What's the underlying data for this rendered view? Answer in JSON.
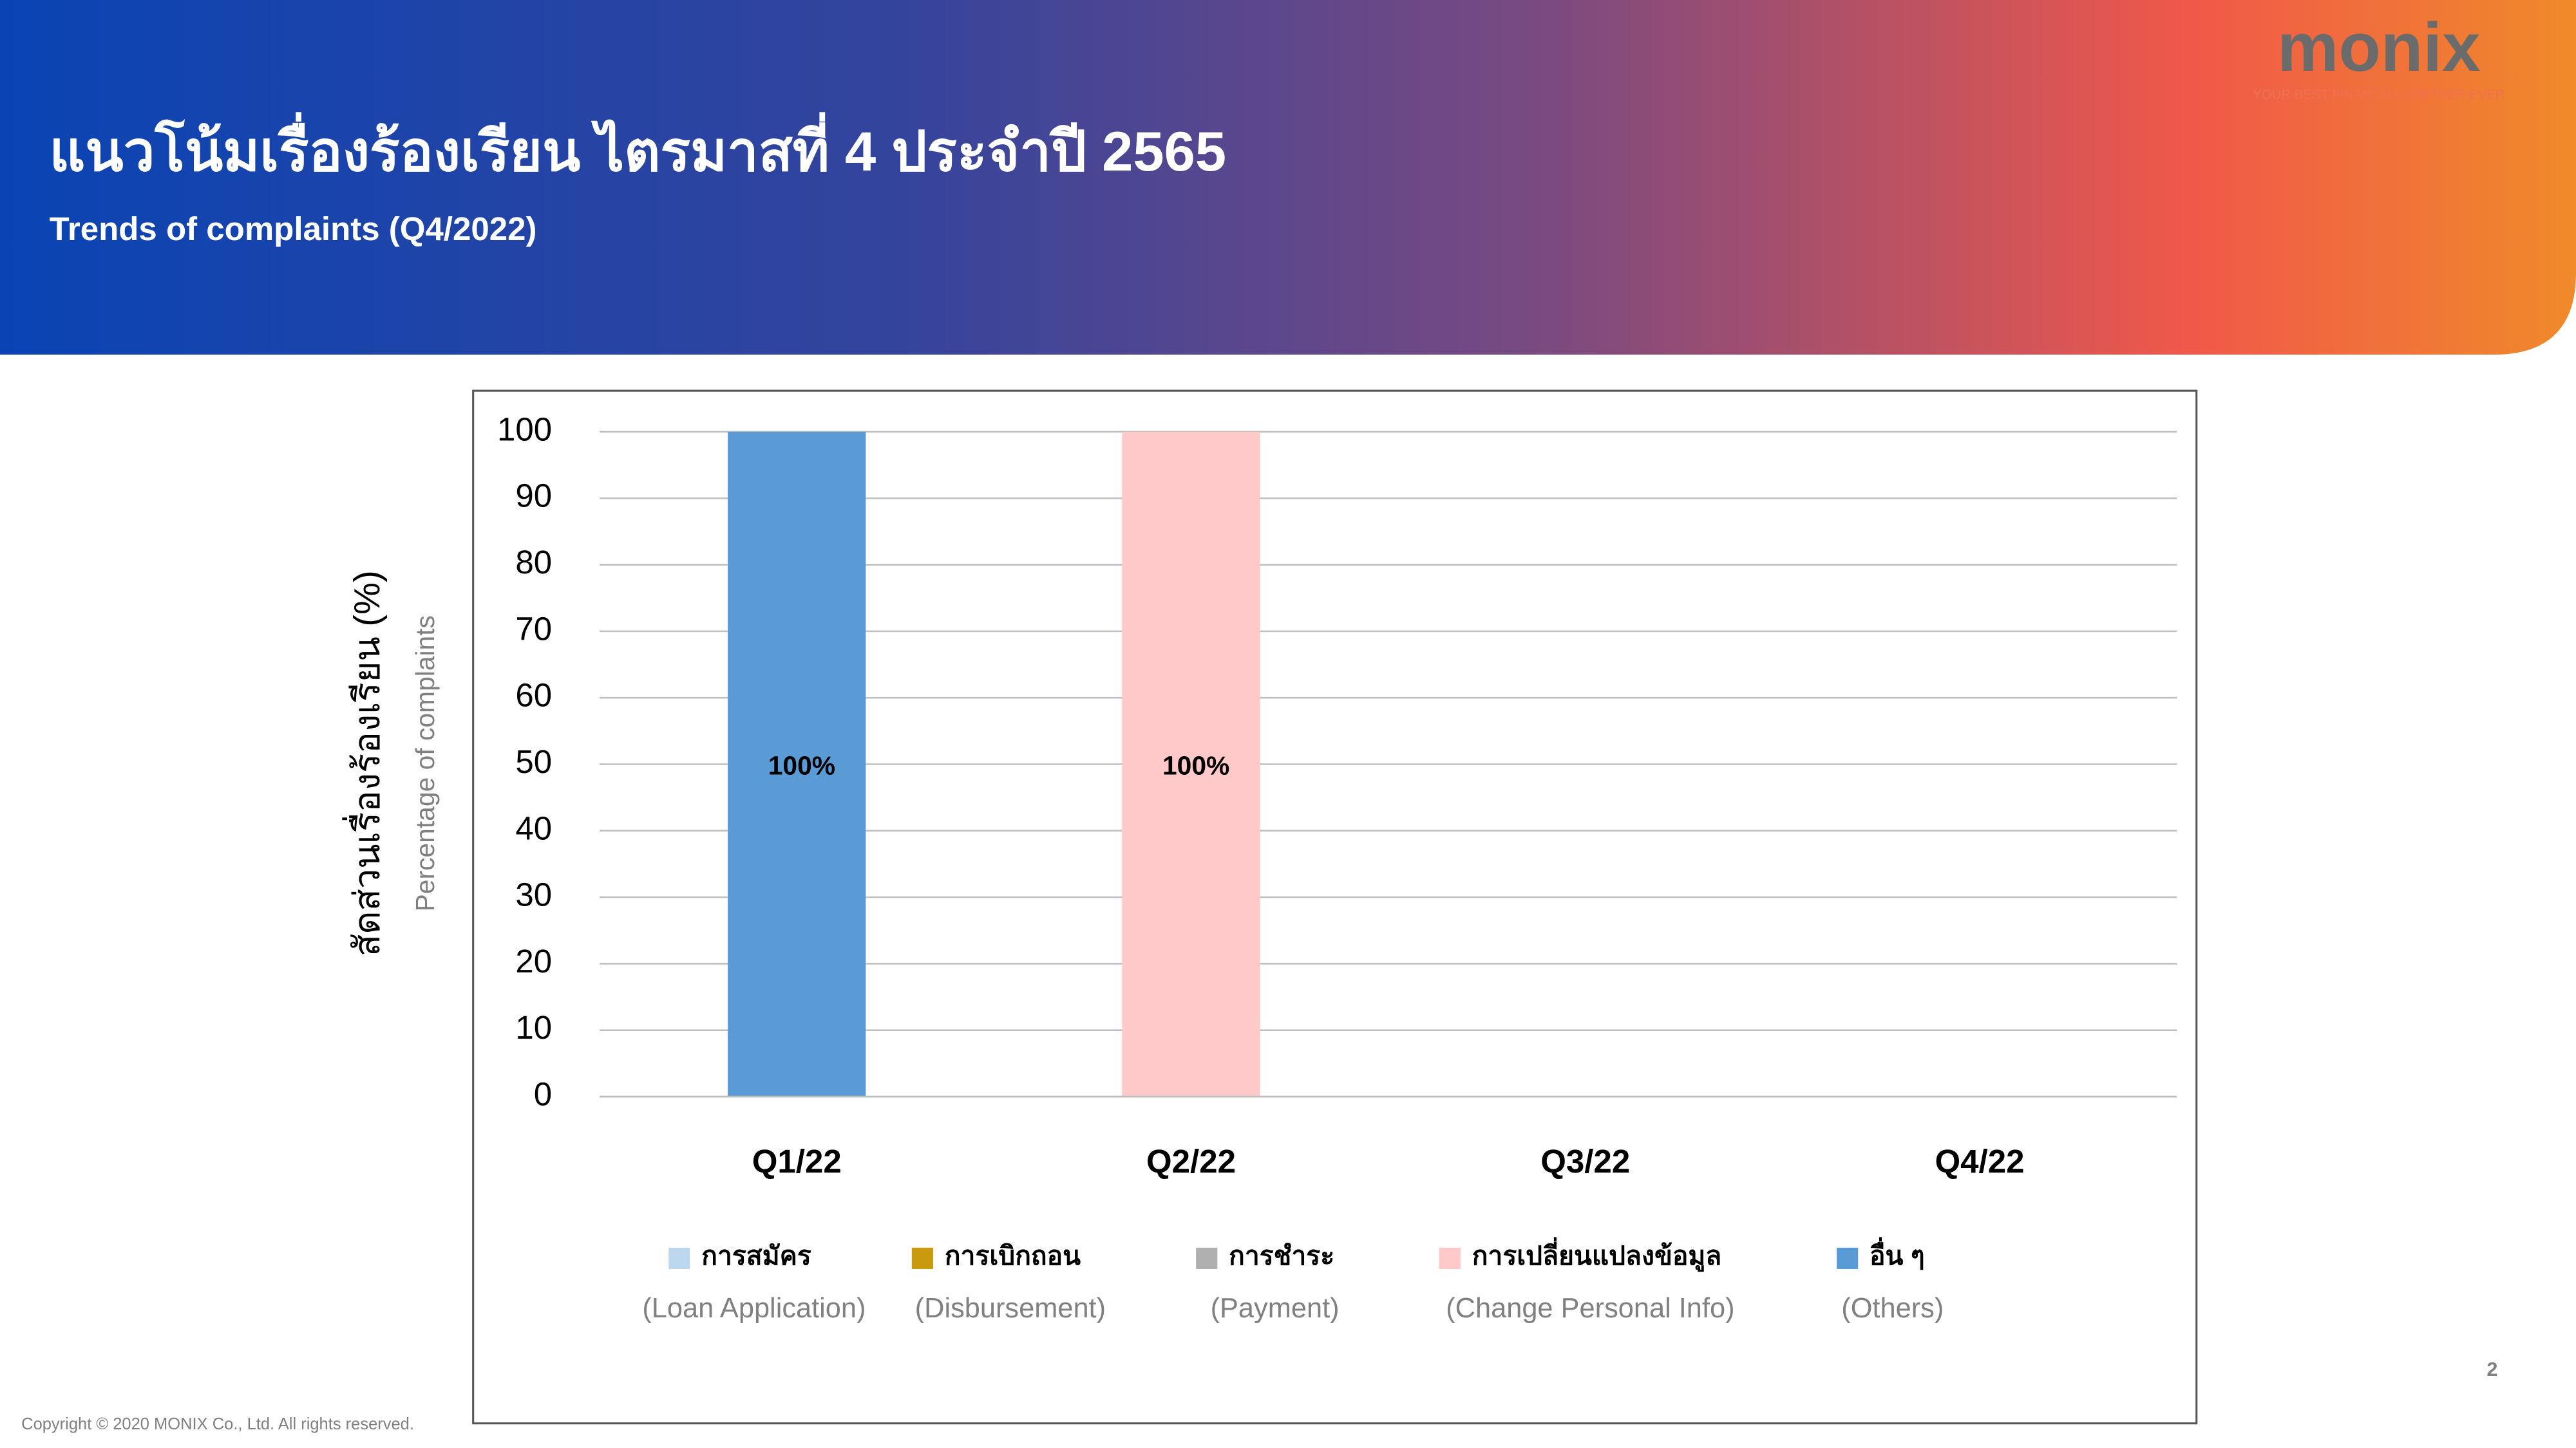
{
  "header": {
    "title": "แนวโน้มเรื่องร้องเรียน ไตรมาสที่ 4 ประจำปี 2565",
    "subtitle": "Trends of complaints (Q4/2022)",
    "logo": "monix",
    "tagline": "YOUR BEST FINANCIAL PARTNER EVER"
  },
  "chart_data": {
    "type": "bar",
    "stacked": true,
    "y_label": "สัดส่วนเรื่องร้องเรียน (%)",
    "y_label_en": "Percentage of complaints",
    "categories": [
      "Q1/22",
      "Q2/22",
      "Q3/22",
      "Q4/22"
    ],
    "series": [
      {
        "name": "การสมัคร",
        "name_en": "(Loan Application)",
        "color": "#bdd7ee",
        "values": [
          0,
          0,
          null,
          null
        ]
      },
      {
        "name": "การเบิกถอน",
        "name_en": "(Disbursement)",
        "color": "#c99a0e",
        "values": [
          0,
          0,
          null,
          null
        ]
      },
      {
        "name": "การชำระ",
        "name_en": "(Payment)",
        "color": "#b0b0b0",
        "values": [
          0,
          0,
          null,
          null
        ]
      },
      {
        "name": "การเปลี่ยนแปลงข้อมูล",
        "name_en": "(Change Personal Info)",
        "color": "#ffc9c9",
        "values": [
          0,
          100,
          null,
          null
        ],
        "value_labels": [
          null,
          "100%",
          null,
          null
        ]
      },
      {
        "name": "อื่น ๆ",
        "name_en": "(Others)",
        "color": "#5b9bd5",
        "values": [
          100,
          0,
          null,
          null
        ],
        "value_labels": [
          "100%",
          null,
          null,
          null
        ]
      }
    ],
    "ylim": [
      0,
      100
    ],
    "yticks": [
      0,
      10,
      20,
      30,
      40,
      50,
      60,
      70,
      80,
      90,
      100
    ],
    "grid": true
  },
  "footer": {
    "copyright": "Copyright © 2020 MONIX Co., Ltd. All rights reserved.",
    "page": "2"
  }
}
